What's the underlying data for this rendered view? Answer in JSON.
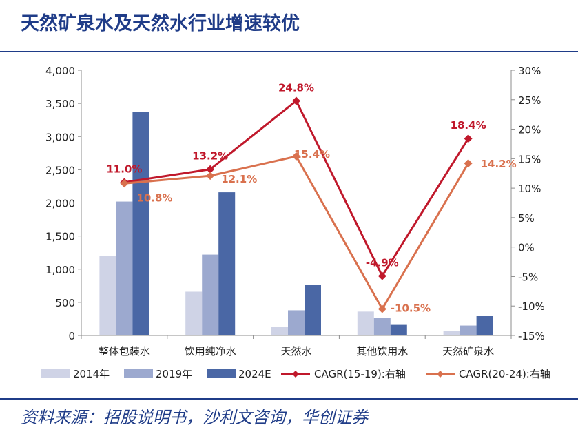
{
  "header": {
    "title": "天然矿泉水及天然水行业增速较优"
  },
  "footer": {
    "source": "资料来源：招股说明书，沙利文咨询，华创证券"
  },
  "chart_data": {
    "type": "bar",
    "categories": [
      "整体包装水",
      "饮用纯净水",
      "天然水",
      "其他饮用水",
      "天然矿泉水"
    ],
    "series": [
      {
        "name": "2014年",
        "axis": "left",
        "kind": "bar",
        "color": "#cfd3e6",
        "values": [
          1200,
          660,
          130,
          360,
          70
        ]
      },
      {
        "name": "2019年",
        "axis": "left",
        "kind": "bar",
        "color": "#9ca9cf",
        "values": [
          2020,
          1220,
          380,
          270,
          150
        ]
      },
      {
        "name": "2024E",
        "axis": "left",
        "kind": "bar",
        "color": "#4a67a5",
        "values": [
          3370,
          2160,
          760,
          160,
          300
        ]
      },
      {
        "name": "CAGR(15-19):右轴",
        "axis": "right",
        "kind": "line",
        "color": "#c0182b",
        "values": [
          11.0,
          13.2,
          24.8,
          -4.9,
          18.4
        ],
        "labels": [
          "11.0%",
          "13.2%",
          "24.8%",
          "-4.9%",
          "18.4%"
        ]
      },
      {
        "name": "CAGR(20-24):右轴",
        "axis": "right",
        "kind": "line",
        "color": "#d9714e",
        "values": [
          10.8,
          12.1,
          15.4,
          -10.5,
          14.2
        ],
        "labels": [
          "10.8%",
          "12.1%",
          "15.4%",
          "-10.5%",
          "14.2%"
        ]
      }
    ],
    "y_left": {
      "min": 0,
      "max": 4000,
      "ticks": [
        "0",
        "500",
        "1,000",
        "1,500",
        "2,000",
        "2,500",
        "3,000",
        "3,500",
        "4,000"
      ]
    },
    "y_right": {
      "min": -15,
      "max": 30,
      "ticks": [
        "-15%",
        "-10%",
        "-5%",
        "0%",
        "5%",
        "10%",
        "15%",
        "20%",
        "25%",
        "30%"
      ]
    },
    "legend": [
      "2014年",
      "2019年",
      "2024E",
      "CAGR(15-19):右轴",
      "CAGR(20-24):右轴"
    ],
    "legend_position": "bottom",
    "grid": false
  }
}
